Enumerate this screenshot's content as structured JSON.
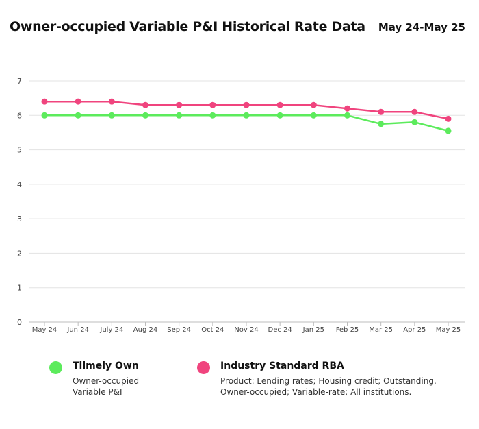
{
  "header": {
    "title": "Owner-occupied Variable P&I Historical Rate Data",
    "date_range": "May 24-May 25"
  },
  "legend": {
    "items": [
      {
        "name": "Tiimely Own",
        "desc_lines": [
          "Owner-occupied",
          "Variable P&I"
        ],
        "color": "#5ceb5c"
      },
      {
        "name": "Industry Standard RBA",
        "desc_lines": [
          "Product: Lending rates; Housing credit; Outstanding.",
          "Owner-occupied; Variable-rate; All institutions."
        ],
        "color": "#f0447e"
      }
    ]
  },
  "chart_data": {
    "type": "line",
    "categories": [
      "May 24",
      "Jun 24",
      "July 24",
      "Aug 24",
      "Sep 24",
      "Oct 24",
      "Nov 24",
      "Dec 24",
      "Jan 25",
      "Feb 25",
      "Mar 25",
      "Apr 25",
      "May 25"
    ],
    "yticks": [
      "0",
      "1",
      "2",
      "3",
      "4",
      "5",
      "6",
      "7"
    ],
    "ylim": [
      0,
      7
    ],
    "grid": true,
    "legend_position": "bottom",
    "series": [
      {
        "name": "Tiimely Own",
        "color": "#5ceb5c",
        "values": [
          6.0,
          6.0,
          6.0,
          6.0,
          6.0,
          6.0,
          6.0,
          6.0,
          6.0,
          6.0,
          5.75,
          5.8,
          5.55
        ]
      },
      {
        "name": "Industry Standard RBA",
        "color": "#f0447e",
        "values": [
          6.4,
          6.4,
          6.4,
          6.3,
          6.3,
          6.3,
          6.3,
          6.3,
          6.3,
          6.2,
          6.1,
          6.1,
          5.9
        ]
      }
    ]
  }
}
